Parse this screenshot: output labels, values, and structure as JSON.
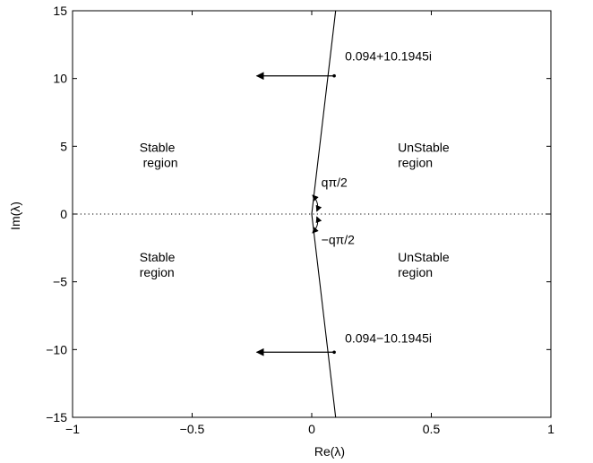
{
  "chart_data": {
    "type": "line",
    "title": "",
    "xlabel": "Re(λ)",
    "ylabel": "Im(λ)",
    "xlim": [
      -1,
      1
    ],
    "ylim": [
      -15,
      15
    ],
    "x_ticks": [
      -1,
      -0.5,
      0,
      0.5,
      1
    ],
    "x_tick_labels": [
      "−1",
      "−0.5",
      "0",
      "0.5",
      "1"
    ],
    "y_ticks": [
      -15,
      -10,
      -5,
      0,
      5,
      10,
      15
    ],
    "y_tick_labels": [
      "−15",
      "−10",
      "−5",
      "0",
      "5",
      "10",
      "15"
    ],
    "grid": false,
    "series": [
      {
        "style": "solid",
        "x": [
          0.1,
          0,
          0.1
        ],
        "y": [
          15,
          0,
          -15
        ]
      },
      {
        "style": "dotted",
        "x": [
          -1,
          1
        ],
        "y": [
          0,
          0
        ]
      }
    ],
    "points": [
      {
        "x": 0.094,
        "y": 10.1945,
        "label": "0.094+10.1945i"
      },
      {
        "x": 0.094,
        "y": -10.1945,
        "label": "0.094−10.1945i"
      }
    ],
    "arrows": [
      {
        "from": [
          0.094,
          10.1945
        ],
        "to": [
          -0.23,
          10.1945
        ]
      },
      {
        "from": [
          0.094,
          -10.1945
        ],
        "to": [
          -0.23,
          -10.1945
        ]
      }
    ],
    "annotations": [
      {
        "lines": [
          "Stable",
          " region"
        ],
        "x": -0.72,
        "y": 4.6
      },
      {
        "lines": [
          "Stable",
          "region"
        ],
        "x": -0.72,
        "y": -3.5
      },
      {
        "lines": [
          "UnStable",
          "region"
        ],
        "x": 0.36,
        "y": 4.6
      },
      {
        "lines": [
          "UnStable",
          "region"
        ],
        "x": 0.36,
        "y": -3.5
      },
      {
        "lines": [
          "qπ/2"
        ],
        "x": 0.04,
        "y": 2.0
      },
      {
        "lines": [
          "−qπ/2"
        ],
        "x": 0.04,
        "y": -2.2
      }
    ],
    "angle_arrows": [
      {
        "from": [
          0.021,
          0.2
        ],
        "to": [
          0.003,
          1.4
        ]
      },
      {
        "from": [
          0.021,
          -0.2
        ],
        "to": [
          0.003,
          -1.4
        ]
      }
    ]
  }
}
